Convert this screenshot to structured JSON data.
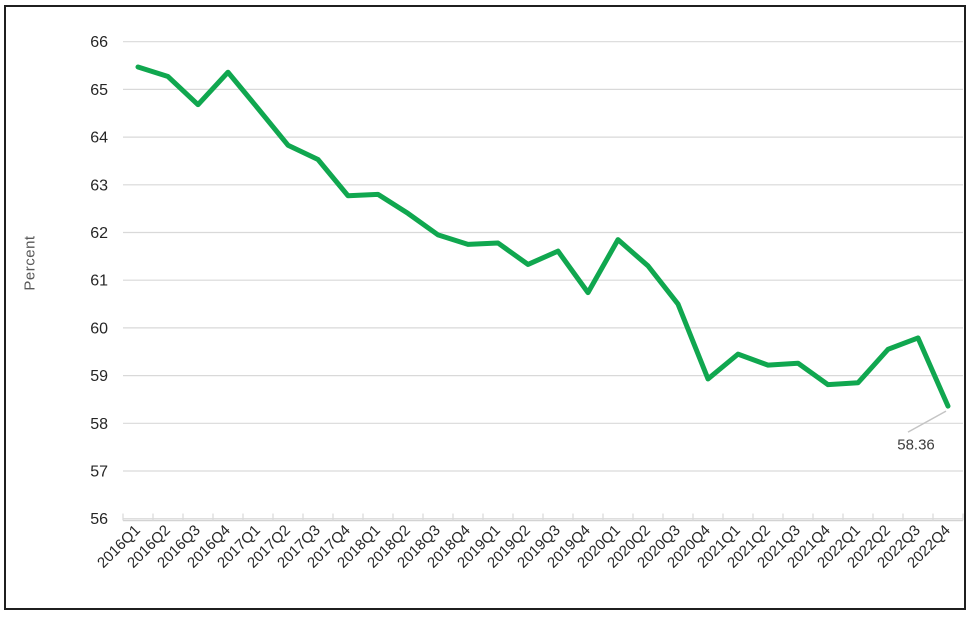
{
  "chart_data": {
    "type": "line",
    "title": "",
    "xlabel": "",
    "ylabel": "Percent",
    "categories": [
      "2016Q1",
      "2016Q2",
      "2016Q3",
      "2016Q4",
      "2017Q1",
      "2017Q2",
      "2017Q3",
      "2017Q4",
      "2018Q1",
      "2018Q2",
      "2018Q3",
      "2018Q4",
      "2019Q1",
      "2019Q2",
      "2019Q3",
      "2019Q4",
      "2020Q1",
      "2020Q2",
      "2020Q3",
      "2020Q4",
      "2021Q1",
      "2021Q2",
      "2021Q3",
      "2021Q4",
      "2022Q1",
      "2022Q2",
      "2022Q3",
      "2022Q4"
    ],
    "series": [
      {
        "name": "Percent",
        "values": [
          65.47,
          65.27,
          64.68,
          65.36,
          64.6,
          63.83,
          63.53,
          62.77,
          62.8,
          62.4,
          61.95,
          61.75,
          61.78,
          61.33,
          61.61,
          60.74,
          61.85,
          61.3,
          60.5,
          58.93,
          59.45,
          59.22,
          59.26,
          58.81,
          58.85,
          59.55,
          59.79,
          58.36
        ]
      }
    ],
    "ylim": [
      56,
      66
    ],
    "yticks": [
      56,
      57,
      58,
      59,
      60,
      61,
      62,
      63,
      64,
      65,
      66
    ],
    "grid": true,
    "legend": "none",
    "end_label": "58.36"
  },
  "colors": {
    "line": "#10a74f",
    "grid": "#d9d9d9",
    "axis": "#d3d3d3",
    "tick_label": "#262626",
    "axis_title": "#595959",
    "annotation": "#3d3d3d",
    "leader": "#c4c4c4",
    "border": "#1f1f1f",
    "background": "#ffffff"
  }
}
